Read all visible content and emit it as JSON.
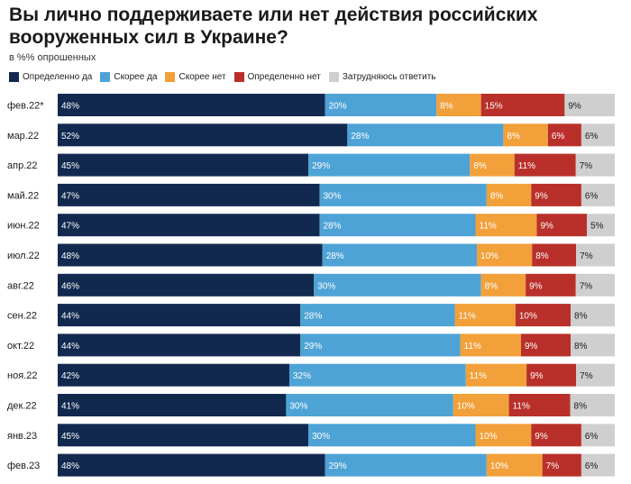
{
  "chart_data": {
    "type": "bar",
    "orientation": "horizontal",
    "stacked": true,
    "title": "Вы лично поддерживаете или нет действия российских вооруженных сил в Украине?",
    "subtitle": "в %% опрошенных",
    "xlabel": "",
    "ylabel": "",
    "xlim": [
      0,
      100
    ],
    "legend_position": "top-left",
    "categories": [
      "фев.22*",
      "мар.22",
      "апр.22",
      "май.22",
      "июн.22",
      "июл.22",
      "авг.22",
      "сен.22",
      "окт.22",
      "ноя.22",
      "дек.22",
      "янв.23",
      "фев.23"
    ],
    "series": [
      {
        "name": "Определенно да",
        "color": "#12294f",
        "label_color": "#ffffff",
        "values": [
          48,
          52,
          45,
          47,
          47,
          48,
          46,
          44,
          44,
          42,
          41,
          45,
          48
        ]
      },
      {
        "name": "Скорее да",
        "color": "#4ea3d6",
        "label_color": "#ffffff",
        "values": [
          20,
          28,
          29,
          30,
          28,
          28,
          30,
          28,
          29,
          32,
          30,
          30,
          29
        ]
      },
      {
        "name": "Скорее нет",
        "color": "#f2a03a",
        "label_color": "#ffffff",
        "values": [
          8,
          8,
          8,
          8,
          11,
          10,
          8,
          11,
          11,
          11,
          10,
          10,
          10
        ]
      },
      {
        "name": "Определенно нет",
        "color": "#b9302a",
        "label_color": "#ffffff",
        "values": [
          15,
          6,
          11,
          9,
          9,
          8,
          9,
          10,
          9,
          9,
          11,
          9,
          7
        ]
      },
      {
        "name": "Затрудняюсь ответить",
        "color": "#cfcfcf",
        "label_color": "#1a1a1a",
        "values": [
          9,
          6,
          7,
          6,
          5,
          7,
          7,
          8,
          8,
          7,
          8,
          6,
          6
        ]
      }
    ],
    "value_suffix": "%"
  }
}
